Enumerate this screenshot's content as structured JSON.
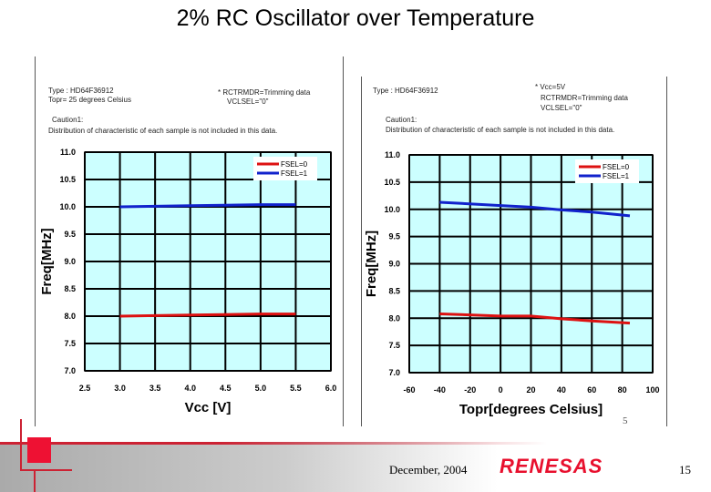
{
  "slide": {
    "title": "2% RC Oscillator over Temperature",
    "date": "December, 2004",
    "brand": "RENESAS",
    "page_number": "15",
    "sub_page": "5"
  },
  "colors": {
    "plot_bg": "#ccffff",
    "fsel0": "#dd1111",
    "fsel1": "#1122cc",
    "grid": "#000000"
  },
  "chart_data": [
    {
      "type": "line",
      "notes": [
        "Type : HD64F36912",
        "Topr= 25 degrees Celsius",
        "* RCTRMDR=Trimming data",
        "VCLSEL=\"0\"",
        "Caution1:",
        "Distribution of characteristic of each sample is not included in this data."
      ],
      "xlabel": "Vcc [V]",
      "ylabel": "Freq[MHz]",
      "xlim": [
        2.5,
        6.0
      ],
      "ylim": [
        7.0,
        11.0
      ],
      "xticks": [
        "2.5",
        "3.0",
        "3.5",
        "4.0",
        "4.5",
        "5.0",
        "5.5",
        "6.0"
      ],
      "yticks": [
        "11.0",
        "10.5",
        "10.0",
        "9.5",
        "9.0",
        "8.5",
        "8.0",
        "7.5",
        "7.0"
      ],
      "grid": true,
      "legend": "top-right",
      "series": [
        {
          "name": "FSEL=0",
          "x": [
            3.0,
            4.0,
            5.0,
            5.5
          ],
          "y": [
            8.0,
            8.02,
            8.04,
            8.04
          ]
        },
        {
          "name": "FSEL=1",
          "x": [
            3.0,
            4.0,
            5.0,
            5.5
          ],
          "y": [
            10.0,
            10.02,
            10.04,
            10.04
          ]
        }
      ]
    },
    {
      "type": "line",
      "notes": [
        "Type : HD64F36912",
        "* Vcc=5V",
        "RCTRMDR=Trimming data",
        "VCLSEL=\"0\"",
        "Caution1:",
        "Distribution of characteristic of each sample is not included in this data."
      ],
      "xlabel": "Topr[degrees Celsius]",
      "ylabel": "Freq[MHz]",
      "xlim": [
        -60,
        100
      ],
      "ylim": [
        7.0,
        11.0
      ],
      "xticks": [
        "-60",
        "-40",
        "-20",
        "0",
        "20",
        "40",
        "60",
        "80",
        "100"
      ],
      "yticks": [
        "11.0",
        "10.5",
        "10.0",
        "9.5",
        "9.0",
        "8.5",
        "8.0",
        "7.5",
        "7.0"
      ],
      "grid": true,
      "legend": "top-right",
      "series": [
        {
          "name": "FSEL=0",
          "x": [
            -40,
            0,
            20,
            40,
            60,
            85
          ],
          "y": [
            8.08,
            8.04,
            8.04,
            7.99,
            7.95,
            7.91
          ]
        },
        {
          "name": "FSEL=1",
          "x": [
            -40,
            0,
            20,
            40,
            60,
            85
          ],
          "y": [
            10.13,
            10.07,
            10.04,
            9.99,
            9.95,
            9.88
          ]
        }
      ]
    }
  ]
}
